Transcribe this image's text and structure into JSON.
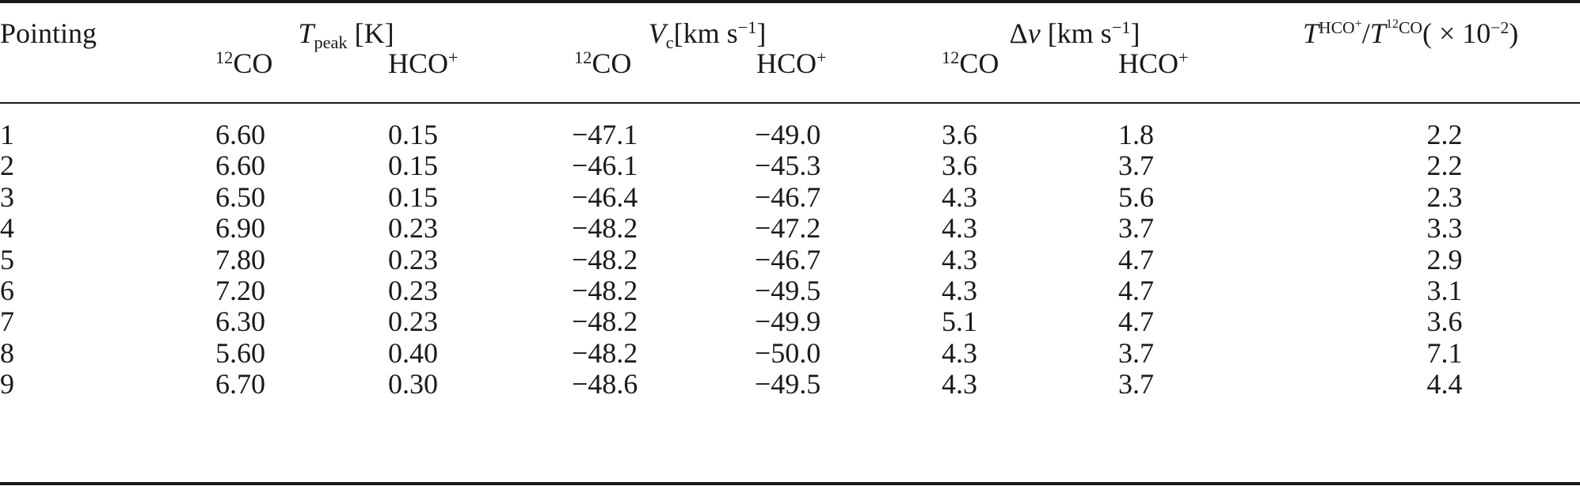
{
  "header": {
    "pointing": "Pointing",
    "tpeak": {
      "symbol": "T",
      "sub": "peak",
      "unit": "[K]"
    },
    "vc": {
      "symbol": "V",
      "sub": "c",
      "unit_pre": "[km s",
      "unit_exp": "−1",
      "unit_post": "]"
    },
    "dv": {
      "symbol": "Δ",
      "var": "v",
      "unit_pre": "[km s",
      "unit_exp": "−1",
      "unit_post": "]"
    },
    "ratio": {
      "num_T": "T",
      "num_sup": "HCO",
      "num_sup_plus": "+",
      "slash": "/",
      "den_T": "T",
      "den_sup_iso": "12",
      "den_sup": "CO",
      "factor_pre": "( × 10",
      "factor_exp": "−2",
      "factor_post": ")"
    },
    "co_iso": "12",
    "co_label": "CO",
    "hco_label": "HCO",
    "hco_plus": "+"
  },
  "rows": [
    {
      "pointing": "1",
      "tpeak_co": "6.60",
      "tpeak_hco": "0.15",
      "vc_co": "−47.1",
      "vc_hco": "−49.0",
      "dv_co": "3.6",
      "dv_hco": "1.8",
      "ratio": "2.2"
    },
    {
      "pointing": "2",
      "tpeak_co": "6.60",
      "tpeak_hco": "0.15",
      "vc_co": "−46.1",
      "vc_hco": "−45.3",
      "dv_co": "3.6",
      "dv_hco": "3.7",
      "ratio": "2.2"
    },
    {
      "pointing": "3",
      "tpeak_co": "6.50",
      "tpeak_hco": "0.15",
      "vc_co": "−46.4",
      "vc_hco": "−46.7",
      "dv_co": "4.3",
      "dv_hco": "5.6",
      "ratio": "2.3"
    },
    {
      "pointing": "4",
      "tpeak_co": "6.90",
      "tpeak_hco": "0.23",
      "vc_co": "−48.2",
      "vc_hco": "−47.2",
      "dv_co": "4.3",
      "dv_hco": "3.7",
      "ratio": "3.3"
    },
    {
      "pointing": "5",
      "tpeak_co": "7.80",
      "tpeak_hco": "0.23",
      "vc_co": "−48.2",
      "vc_hco": "−46.7",
      "dv_co": "4.3",
      "dv_hco": "4.7",
      "ratio": "2.9"
    },
    {
      "pointing": "6",
      "tpeak_co": "7.20",
      "tpeak_hco": "0.23",
      "vc_co": "−48.2",
      "vc_hco": "−49.5",
      "dv_co": "4.3",
      "dv_hco": "4.7",
      "ratio": "3.1"
    },
    {
      "pointing": "7",
      "tpeak_co": "6.30",
      "tpeak_hco": "0.23",
      "vc_co": "−48.2",
      "vc_hco": "−49.9",
      "dv_co": "5.1",
      "dv_hco": "4.7",
      "ratio": "3.6"
    },
    {
      "pointing": "8",
      "tpeak_co": "5.60",
      "tpeak_hco": "0.40",
      "vc_co": "−48.2",
      "vc_hco": "−50.0",
      "dv_co": "4.3",
      "dv_hco": "3.7",
      "ratio": "7.1"
    },
    {
      "pointing": "9",
      "tpeak_co": "6.70",
      "tpeak_hco": "0.30",
      "vc_co": "−48.6",
      "vc_hco": "−49.5",
      "dv_co": "4.3",
      "dv_hco": "3.7",
      "ratio": "4.4"
    }
  ]
}
